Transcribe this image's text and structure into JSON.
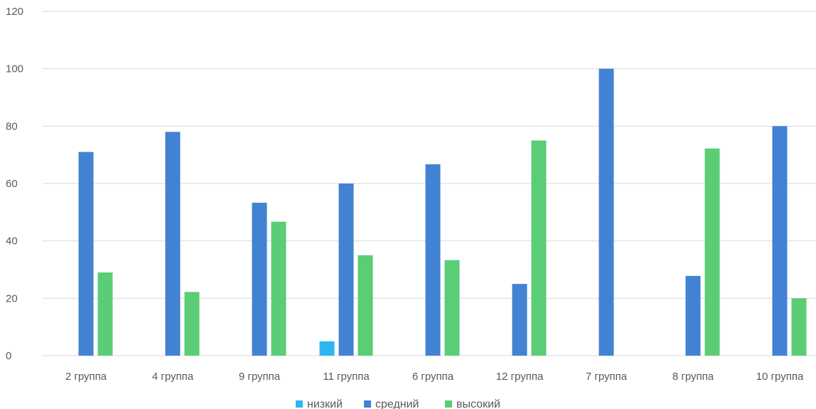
{
  "chart_data": {
    "type": "bar",
    "categories": [
      "2 группа",
      "4 группа",
      "9 группа",
      "11 группа",
      "6 группа",
      "12 группа",
      "7 группа",
      "8 группа",
      "10 группа"
    ],
    "series": [
      {
        "name": "низкий",
        "color": "#2EB5F2",
        "values": [
          0,
          0,
          0,
          5,
          0,
          0,
          0,
          0,
          0
        ]
      },
      {
        "name": "средний",
        "color": "#4282D3",
        "values": [
          71,
          78,
          53.3,
          60,
          66.7,
          25,
          100,
          27.8,
          80
        ]
      },
      {
        "name": "высокий",
        "color": "#5ACD75",
        "values": [
          29,
          22.2,
          46.7,
          35,
          33.3,
          75,
          0,
          72.2,
          20
        ]
      }
    ],
    "y_ticks": [
      "0",
      "20",
      "40",
      "60",
      "80",
      "100",
      "120"
    ],
    "ylim": [
      0,
      120
    ],
    "grid": true,
    "legend_position": "bottom"
  }
}
